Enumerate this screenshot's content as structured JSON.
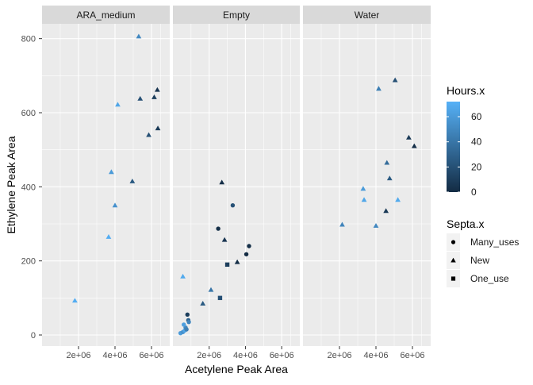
{
  "chart_data": {
    "type": "scatter",
    "xlabel": "Acetylene Peak Area",
    "ylabel": "Ethylene Peak Area",
    "xlim": [
      0,
      7000000
    ],
    "ylim": [
      -30,
      840
    ],
    "x_ticks": [
      2000000,
      4000000,
      6000000
    ],
    "x_tick_labels": [
      "2e+06",
      "4e+06",
      "6e+06"
    ],
    "y_ticks": [
      0,
      200,
      400,
      600,
      800
    ],
    "y_tick_labels": [
      "0",
      "200",
      "400",
      "600",
      "800"
    ],
    "grid": true,
    "legend_position": "right",
    "color_legend": {
      "title": "Hours.x",
      "ticks": [
        0,
        20,
        40,
        60
      ],
      "tick_labels": [
        "0",
        "20",
        "40",
        "60"
      ],
      "range": [
        0,
        72
      ],
      "low_color": "#132B43",
      "high_color": "#56B1F7"
    },
    "shape_legend": {
      "title": "Septa.x",
      "entries": [
        {
          "label": "Many_uses",
          "shape": "circle"
        },
        {
          "label": "New",
          "shape": "triangle"
        },
        {
          "label": "One_use",
          "shape": "square"
        }
      ]
    },
    "panels": [
      {
        "name": "ARA_medium",
        "points": [
          {
            "x": 1800000,
            "y": 93,
            "hours": 70,
            "septa": "New"
          },
          {
            "x": 3650000,
            "y": 265,
            "hours": 70,
            "septa": "New"
          },
          {
            "x": 3800000,
            "y": 440,
            "hours": 60,
            "septa": "New"
          },
          {
            "x": 4000000,
            "y": 350,
            "hours": 55,
            "septa": "New"
          },
          {
            "x": 4150000,
            "y": 622,
            "hours": 66,
            "septa": "New"
          },
          {
            "x": 4950000,
            "y": 415,
            "hours": 25,
            "septa": "New"
          },
          {
            "x": 5300000,
            "y": 806,
            "hours": 50,
            "septa": "New"
          },
          {
            "x": 5380000,
            "y": 638,
            "hours": 20,
            "septa": "New"
          },
          {
            "x": 5850000,
            "y": 540,
            "hours": 20,
            "septa": "New"
          },
          {
            "x": 6150000,
            "y": 642,
            "hours": 10,
            "septa": "New"
          },
          {
            "x": 6320000,
            "y": 662,
            "hours": 5,
            "septa": "New"
          },
          {
            "x": 6350000,
            "y": 558,
            "hours": 8,
            "septa": "New"
          }
        ]
      },
      {
        "name": "Empty",
        "points": [
          {
            "x": 420000,
            "y": 5,
            "hours": 60,
            "septa": "Many_uses"
          },
          {
            "x": 550000,
            "y": 8,
            "hours": 55,
            "septa": "Many_uses"
          },
          {
            "x": 650000,
            "y": 12,
            "hours": 65,
            "septa": "Many_uses"
          },
          {
            "x": 700000,
            "y": 20,
            "hours": 50,
            "septa": "Many_uses"
          },
          {
            "x": 600000,
            "y": 28,
            "hours": 62,
            "septa": "Many_uses"
          },
          {
            "x": 750000,
            "y": 15,
            "hours": 45,
            "septa": "Many_uses"
          },
          {
            "x": 800000,
            "y": 55,
            "hours": 10,
            "septa": "Many_uses"
          },
          {
            "x": 850000,
            "y": 40,
            "hours": 30,
            "septa": "Many_uses"
          },
          {
            "x": 880000,
            "y": 35,
            "hours": 48,
            "septa": "Many_uses"
          },
          {
            "x": 2500000,
            "y": 287,
            "hours": 2,
            "septa": "Many_uses"
          },
          {
            "x": 3300000,
            "y": 350,
            "hours": 20,
            "septa": "Many_uses"
          },
          {
            "x": 4050000,
            "y": 218,
            "hours": 0,
            "septa": "Many_uses"
          },
          {
            "x": 4200000,
            "y": 240,
            "hours": 2,
            "septa": "Many_uses"
          },
          {
            "x": 550000,
            "y": 158,
            "hours": 68,
            "septa": "New"
          },
          {
            "x": 1650000,
            "y": 85,
            "hours": 25,
            "septa": "New"
          },
          {
            "x": 2100000,
            "y": 122,
            "hours": 40,
            "septa": "New"
          },
          {
            "x": 2700000,
            "y": 412,
            "hours": 2,
            "septa": "New"
          },
          {
            "x": 2850000,
            "y": 257,
            "hours": 5,
            "septa": "New"
          },
          {
            "x": 3550000,
            "y": 197,
            "hours": 2,
            "septa": "New"
          },
          {
            "x": 2600000,
            "y": 100,
            "hours": 20,
            "septa": "One_use"
          },
          {
            "x": 3000000,
            "y": 190,
            "hours": 10,
            "septa": "One_use"
          }
        ]
      },
      {
        "name": "Water",
        "points": [
          {
            "x": 2150000,
            "y": 298,
            "hours": 48,
            "septa": "New"
          },
          {
            "x": 3300000,
            "y": 395,
            "hours": 60,
            "septa": "New"
          },
          {
            "x": 3350000,
            "y": 365,
            "hours": 66,
            "septa": "New"
          },
          {
            "x": 4000000,
            "y": 295,
            "hours": 50,
            "septa": "New"
          },
          {
            "x": 4150000,
            "y": 665,
            "hours": 45,
            "septa": "New"
          },
          {
            "x": 4550000,
            "y": 335,
            "hours": 8,
            "septa": "New"
          },
          {
            "x": 4600000,
            "y": 465,
            "hours": 35,
            "septa": "New"
          },
          {
            "x": 4750000,
            "y": 423,
            "hours": 25,
            "septa": "New"
          },
          {
            "x": 5050000,
            "y": 688,
            "hours": 20,
            "septa": "New"
          },
          {
            "x": 5200000,
            "y": 365,
            "hours": 68,
            "septa": "New"
          },
          {
            "x": 5800000,
            "y": 533,
            "hours": 8,
            "septa": "New"
          },
          {
            "x": 6100000,
            "y": 510,
            "hours": 2,
            "septa": "New"
          }
        ]
      }
    ]
  }
}
